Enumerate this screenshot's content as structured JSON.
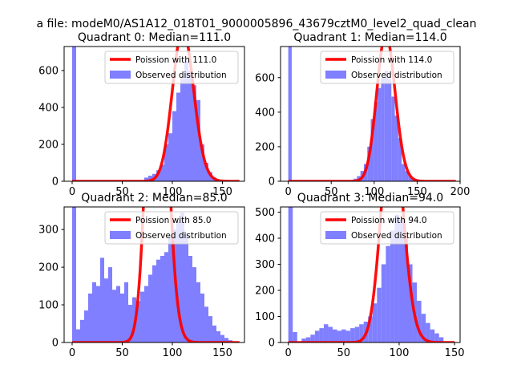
{
  "figure": {
    "suptitle": "a file: modeM0/AS1A12_018T01_9000005896_43679cztM0_level2_quad_clean"
  },
  "colors": {
    "poisson_line": "#ff0000",
    "observed_fill": "#7f7fff",
    "background": "#ffffff",
    "axis": "#000000"
  },
  "chart_data": [
    {
      "type": "bar",
      "title": "Quadrant 0: Median=111.0",
      "median": 111.0,
      "xlim": [
        -8,
        172
      ],
      "ylim": [
        0,
        730
      ],
      "xticks": [
        0,
        50,
        100,
        150
      ],
      "yticks": [
        0,
        200,
        400,
        600
      ],
      "legend_position": "upper right",
      "legend": [
        "Poission with 111.0",
        "Observed distribution"
      ],
      "series": [
        {
          "name": "Poission with 111.0",
          "type": "line"
        },
        {
          "name": "Observed distribution",
          "type": "histogram",
          "bin_width": 4,
          "bins": [
            [
              0,
              730
            ],
            [
              72,
              20
            ],
            [
              76,
              30
            ],
            [
              80,
              40
            ],
            [
              84,
              60
            ],
            [
              88,
              90
            ],
            [
              92,
              200
            ],
            [
              96,
              260
            ],
            [
              100,
              380
            ],
            [
              104,
              480
            ],
            [
              108,
              560
            ],
            [
              112,
              650
            ],
            [
              116,
              600
            ],
            [
              120,
              520
            ],
            [
              124,
              440
            ],
            [
              128,
              200
            ],
            [
              132,
              100
            ],
            [
              136,
              50
            ],
            [
              140,
              20
            ]
          ]
        }
      ]
    },
    {
      "type": "bar",
      "title": "Quadrant 1: Median=114.0",
      "median": 114.0,
      "xlim": [
        -9,
        200
      ],
      "ylim": [
        0,
        780
      ],
      "xticks": [
        0,
        50,
        100,
        150,
        200
      ],
      "yticks": [
        0,
        200,
        400,
        600
      ],
      "legend_position": "upper right",
      "legend": [
        "Poission with 114.0",
        "Observed distribution"
      ],
      "series": [
        {
          "name": "Poission with 114.0",
          "type": "line"
        },
        {
          "name": "Observed distribution",
          "type": "histogram",
          "bin_width": 4,
          "bins": [
            [
              0,
              780
            ],
            [
              76,
              15
            ],
            [
              80,
              30
            ],
            [
              84,
              60
            ],
            [
              88,
              100
            ],
            [
              92,
              200
            ],
            [
              96,
              360
            ],
            [
              100,
              460
            ],
            [
              104,
              540
            ],
            [
              108,
              600
            ],
            [
              112,
              640
            ],
            [
              116,
              590
            ],
            [
              120,
              490
            ],
            [
              124,
              380
            ],
            [
              128,
              250
            ],
            [
              132,
              100
            ],
            [
              136,
              60
            ],
            [
              140,
              30
            ],
            [
              144,
              15
            ]
          ]
        }
      ]
    },
    {
      "type": "bar",
      "title": "Quadrant 2: Median=85.0",
      "median": 85.0,
      "xlim": [
        -8,
        172
      ],
      "ylim": [
        0,
        360
      ],
      "xticks": [
        0,
        50,
        100,
        150
      ],
      "yticks": [
        0,
        100,
        200,
        300
      ],
      "legend_position": "upper right",
      "legend": [
        "Poission with 85.0",
        "Observed distribution"
      ],
      "series": [
        {
          "name": "Poission with 85.0",
          "type": "line"
        },
        {
          "name": "Observed distribution",
          "type": "histogram",
          "bin_width": 4,
          "bins": [
            [
              0,
              360
            ],
            [
              4,
              35
            ],
            [
              8,
              60
            ],
            [
              12,
              85
            ],
            [
              16,
              130
            ],
            [
              20,
              160
            ],
            [
              24,
              150
            ],
            [
              28,
              225
            ],
            [
              32,
              170
            ],
            [
              36,
              200
            ],
            [
              40,
              140
            ],
            [
              44,
              150
            ],
            [
              48,
              130
            ],
            [
              52,
              160
            ],
            [
              56,
              100
            ],
            [
              60,
              120
            ],
            [
              64,
              110
            ],
            [
              68,
              135
            ],
            [
              72,
              150
            ],
            [
              76,
              180
            ],
            [
              80,
              205
            ],
            [
              84,
              220
            ],
            [
              88,
              230
            ],
            [
              92,
              240
            ],
            [
              96,
              280
            ],
            [
              100,
              300
            ],
            [
              104,
              320
            ],
            [
              108,
              345
            ],
            [
              112,
              290
            ],
            [
              116,
              230
            ],
            [
              120,
              200
            ],
            [
              124,
              160
            ],
            [
              128,
              130
            ],
            [
              132,
              95
            ],
            [
              136,
              70
            ],
            [
              140,
              45
            ],
            [
              144,
              30
            ],
            [
              148,
              20
            ],
            [
              152,
              12
            ],
            [
              156,
              6
            ]
          ]
        }
      ]
    },
    {
      "type": "bar",
      "title": "Quadrant 3: Median=94.0",
      "median": 94.0,
      "xlim": [
        -7,
        155
      ],
      "ylim": [
        0,
        520
      ],
      "xticks": [
        0,
        50,
        100,
        150
      ],
      "yticks": [
        0,
        100,
        200,
        300,
        400,
        500
      ],
      "legend_position": "upper right",
      "legend": [
        "Poission with 94.0",
        "Observed distribution"
      ],
      "series": [
        {
          "name": "Poission with 94.0",
          "type": "line"
        },
        {
          "name": "Observed distribution",
          "type": "histogram",
          "bin_width": 4,
          "bins": [
            [
              0,
              520
            ],
            [
              4,
              40
            ],
            [
              12,
              15
            ],
            [
              16,
              20
            ],
            [
              20,
              30
            ],
            [
              24,
              45
            ],
            [
              28,
              55
            ],
            [
              32,
              70
            ],
            [
              36,
              60
            ],
            [
              40,
              50
            ],
            [
              44,
              45
            ],
            [
              48,
              50
            ],
            [
              52,
              45
            ],
            [
              56,
              55
            ],
            [
              60,
              60
            ],
            [
              64,
              70
            ],
            [
              68,
              80
            ],
            [
              72,
              100
            ],
            [
              76,
              150
            ],
            [
              80,
              210
            ],
            [
              84,
              300
            ],
            [
              88,
              370
            ],
            [
              92,
              430
            ],
            [
              96,
              490
            ],
            [
              100,
              470
            ],
            [
              104,
              400
            ],
            [
              108,
              300
            ],
            [
              112,
              230
            ],
            [
              116,
              160
            ],
            [
              120,
              110
            ],
            [
              124,
              75
            ],
            [
              128,
              50
            ],
            [
              132,
              35
            ],
            [
              136,
              20
            ]
          ]
        }
      ]
    }
  ]
}
